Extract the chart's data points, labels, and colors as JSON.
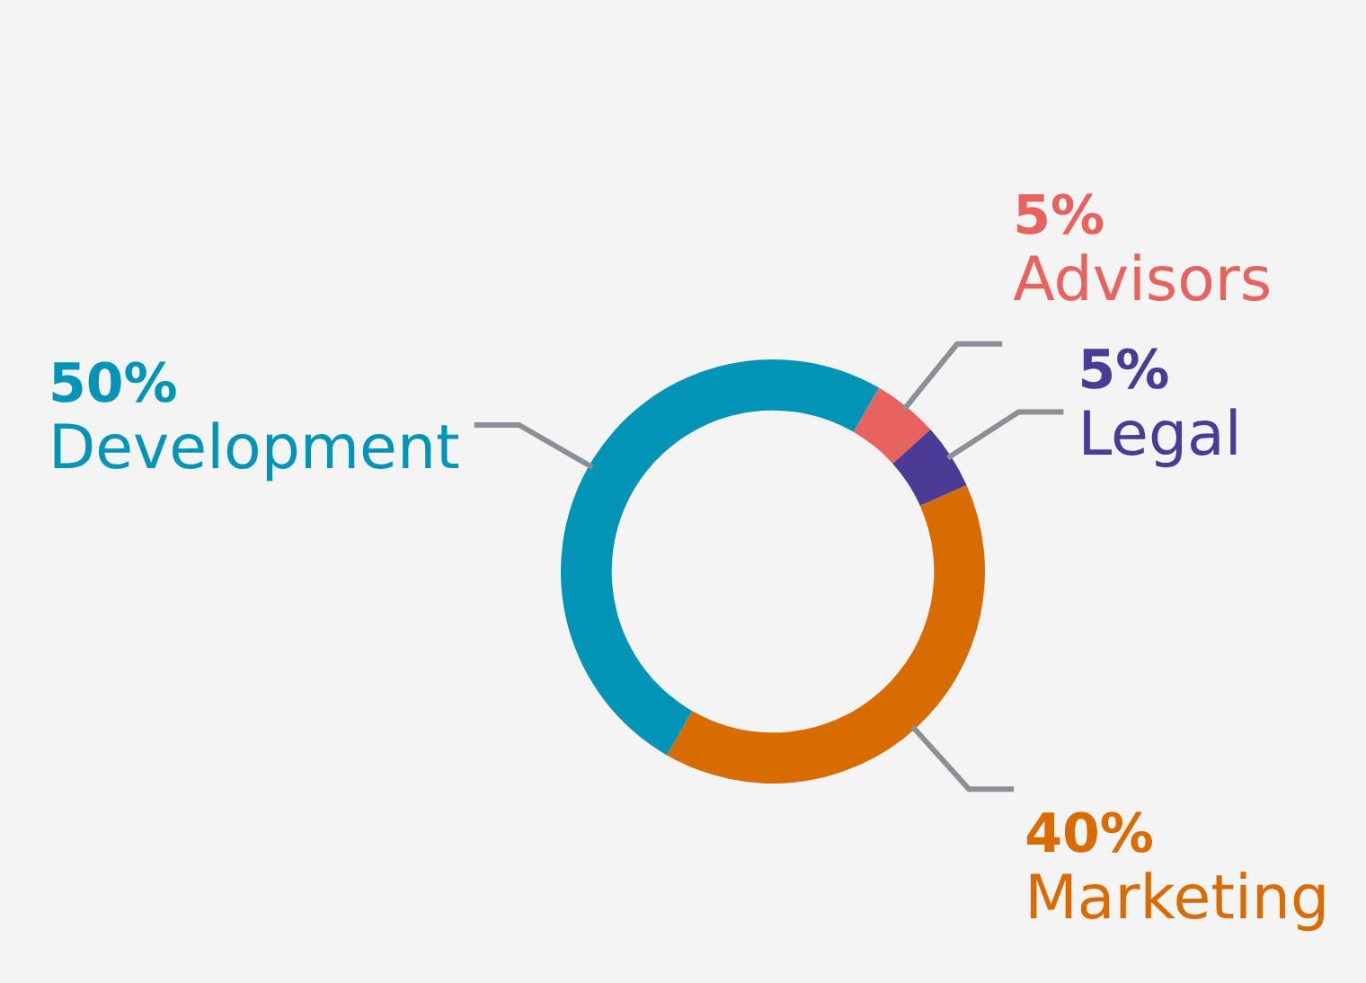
{
  "chart_data": {
    "type": "donut",
    "categories": [
      "Advisors",
      "Legal",
      "Marketing",
      "Development"
    ],
    "values": [
      5,
      5,
      40,
      50
    ],
    "colors": [
      "#e8625f",
      "#4b3a96",
      "#d96c00",
      "#0095b6"
    ],
    "value_labels": [
      "5%",
      "5%",
      "40%",
      "50%"
    ],
    "legend": false
  }
}
